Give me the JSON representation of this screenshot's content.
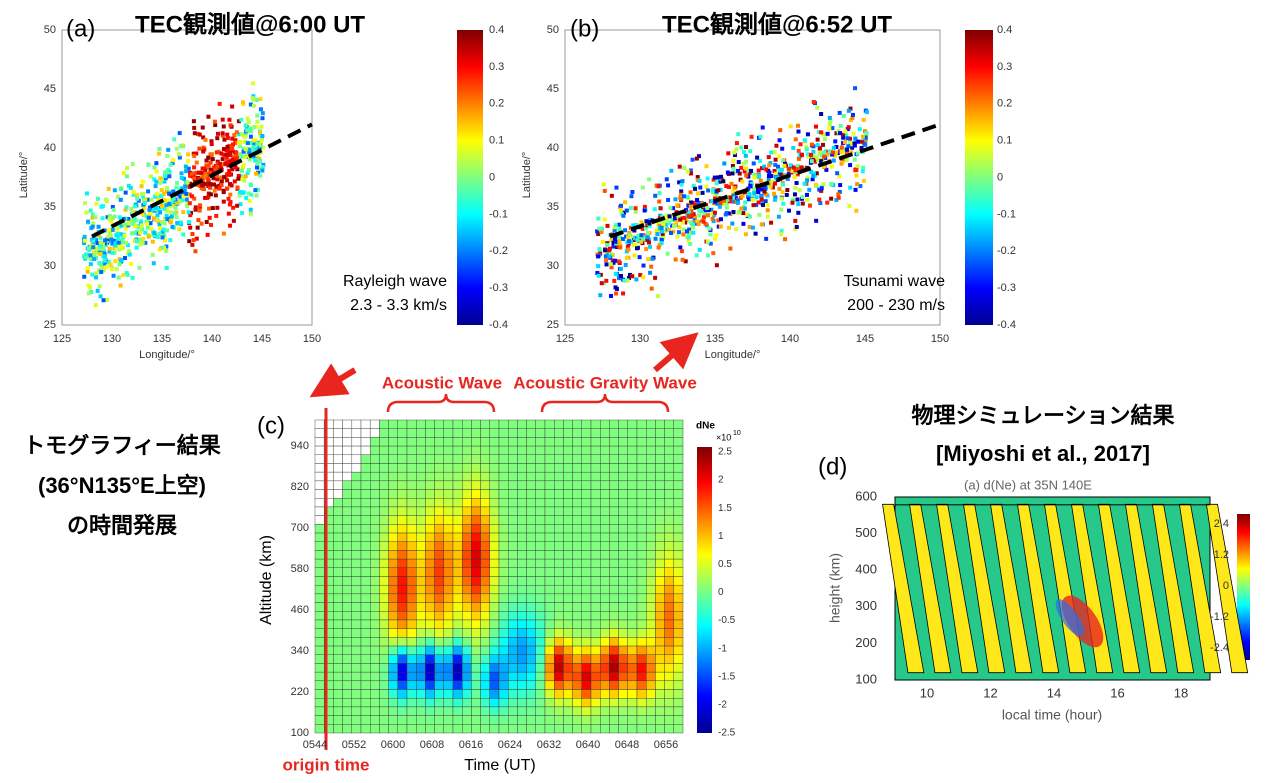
{
  "panel_a": {
    "label": "(a)",
    "title": "TEC観測値@6:00 UT",
    "xlabel": "Longitude/°",
    "ylabel": "Latitude/°",
    "xticks": [
      125,
      130,
      135,
      140,
      145,
      150
    ],
    "yticks": [
      25,
      30,
      35,
      40,
      45,
      50
    ],
    "colorbar_ticks": [
      0.4,
      0.3,
      0.2,
      0.1,
      0,
      -0.1,
      -0.2,
      -0.3,
      -0.4
    ],
    "annotation": [
      "Rayleigh wave",
      "2.3 - 3.3 km/s"
    ]
  },
  "panel_b": {
    "label": "(b)",
    "title": "TEC観測値@6:52 UT",
    "xlabel": "Longitude/°",
    "ylabel": "Latitude/°",
    "xticks": [
      125,
      130,
      135,
      140,
      145,
      150
    ],
    "yticks": [
      25,
      30,
      35,
      40,
      45,
      50
    ],
    "colorbar_ticks": [
      0.4,
      0.3,
      0.2,
      0.1,
      0,
      -0.1,
      -0.2,
      -0.3,
      -0.4
    ],
    "annotation": [
      "Tsunami wave",
      "200 - 230 m/s"
    ]
  },
  "panel_c": {
    "label": "(c)",
    "title": [
      "トモグラフィー結果",
      "(36°N135°E上空)",
      "の時間発展"
    ],
    "ylabel": "Altitude (km)",
    "xlabel": "Time (UT)",
    "yticks": [
      100,
      220,
      340,
      460,
      580,
      700,
      820,
      940
    ],
    "xticks": [
      "0544",
      "0552",
      "0600",
      "0608",
      "0616",
      "0624",
      "0632",
      "0640",
      "0648",
      "0656"
    ],
    "colorbar_title": "dNe",
    "colorbar_exponent": [
      "×10",
      "10"
    ],
    "colorbar_ticks": [
      2.5,
      2,
      1.5,
      1,
      0.5,
      0,
      -0.5,
      -1,
      -1.5,
      -2,
      -2.5
    ],
    "annotations": {
      "acoustic": "Acoustic Wave",
      "gravity": "Acoustic Gravity Wave",
      "origin": "origin time"
    }
  },
  "panel_d": {
    "label": "(d)",
    "title": [
      "物理シミュレーション結果",
      "[Miyoshi et al., 2017]"
    ],
    "subtitle": "(a) d(Ne) at 35N 140E",
    "ylabel": "height (km)",
    "xlabel": "local time (hour)",
    "yticks": [
      100,
      200,
      300,
      400,
      500,
      600
    ],
    "xticks": [
      10,
      12,
      14,
      16,
      18
    ],
    "colorbar_ticks": [
      2.4,
      1.2,
      0,
      -1.2,
      -2.4
    ]
  }
}
